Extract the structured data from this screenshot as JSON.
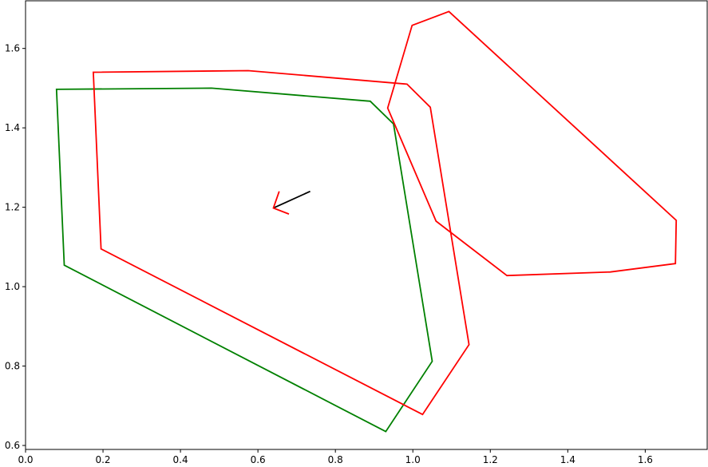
{
  "chart_data": {
    "type": "line",
    "title": "",
    "xlabel": "",
    "ylabel": "",
    "xlim": [
      0.0,
      1.76
    ],
    "ylim": [
      0.59,
      1.72
    ],
    "grid": false,
    "xticks": [
      {
        "value": 0.0,
        "label": "0.0"
      },
      {
        "value": 0.2,
        "label": "0.2"
      },
      {
        "value": 0.4,
        "label": "0.4"
      },
      {
        "value": 0.6,
        "label": "0.6"
      },
      {
        "value": 0.8,
        "label": "0.8"
      },
      {
        "value": 1.0,
        "label": "1.0"
      },
      {
        "value": 1.2,
        "label": "1.2"
      },
      {
        "value": 1.4,
        "label": "1.4"
      },
      {
        "value": 1.6,
        "label": "1.6"
      }
    ],
    "yticks": [
      {
        "value": 0.6,
        "label": "0.6"
      },
      {
        "value": 0.8,
        "label": "0.8"
      },
      {
        "value": 1.0,
        "label": "1.0"
      },
      {
        "value": 1.2,
        "label": "1.2"
      },
      {
        "value": 1.4,
        "label": "1.4"
      },
      {
        "value": 1.6,
        "label": "1.6"
      }
    ],
    "series": [
      {
        "color": "#008000",
        "closed": true,
        "points": [
          [
            0.08,
            1.497
          ],
          [
            0.48,
            1.5
          ],
          [
            0.89,
            1.467
          ],
          [
            0.95,
            1.41
          ],
          [
            1.05,
            0.812
          ],
          [
            0.93,
            0.635
          ],
          [
            0.1,
            1.054
          ]
        ]
      },
      {
        "color": "#ff0000",
        "closed": true,
        "points": [
          [
            0.175,
            1.54
          ],
          [
            0.575,
            1.544
          ],
          [
            0.985,
            1.51
          ],
          [
            1.045,
            1.452
          ],
          [
            1.145,
            0.854
          ],
          [
            1.025,
            0.678
          ],
          [
            0.195,
            1.095
          ]
        ]
      },
      {
        "color": "#ff0000",
        "closed": true,
        "points": [
          [
            0.935,
            1.45
          ],
          [
            0.998,
            1.658
          ],
          [
            1.093,
            1.693
          ],
          [
            1.68,
            1.167
          ],
          [
            1.678,
            1.058
          ],
          [
            1.51,
            1.037
          ],
          [
            1.243,
            1.028
          ],
          [
            1.06,
            1.165
          ]
        ]
      },
      {
        "color": "#000000",
        "closed": false,
        "points": [
          [
            0.64,
            1.198
          ],
          [
            0.735,
            1.24
          ]
        ]
      },
      {
        "color": "#ff0000",
        "closed": false,
        "points": [
          [
            0.655,
            1.24
          ],
          [
            0.64,
            1.198
          ],
          [
            0.68,
            1.183
          ]
        ]
      }
    ]
  }
}
